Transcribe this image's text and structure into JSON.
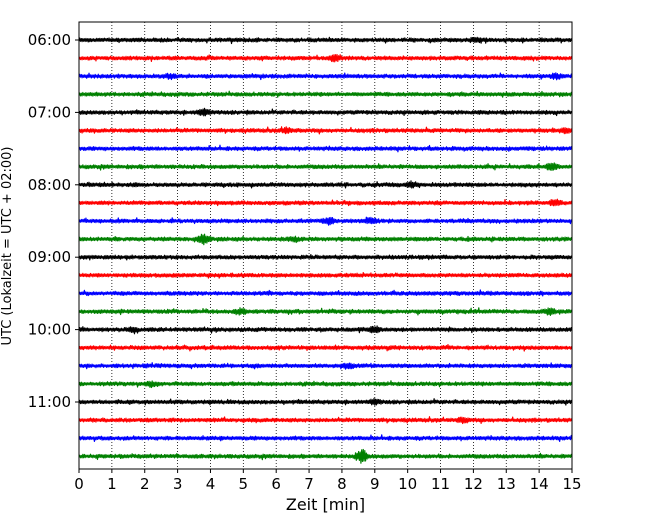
{
  "chart_data": {
    "type": "line",
    "title": "",
    "xlabel": "Zeit  [min]",
    "ylabel": "UTC (Lokalzeit = UTC + 02:00)",
    "xlim": [
      0,
      15
    ],
    "xticks": [
      0,
      1,
      2,
      3,
      4,
      5,
      6,
      7,
      8,
      9,
      10,
      11,
      12,
      13,
      14,
      15
    ],
    "x_grid": "dotted vertical lines at every minute",
    "y_tick_labels": [
      "06:00",
      "07:00",
      "08:00",
      "09:00",
      "10:00",
      "11:00"
    ],
    "trace_interval_minutes": 15,
    "first_trace": "06:00",
    "trace_count": 24,
    "trace_colors": [
      "#000000",
      "#ff0000",
      "#0000ff",
      "#008000"
    ],
    "events": [
      {
        "trace": 0,
        "t": 12.1,
        "amp": 2.0
      },
      {
        "trace": 1,
        "t": 7.8,
        "amp": 3.0
      },
      {
        "trace": 2,
        "t": 2.8,
        "amp": 2.0
      },
      {
        "trace": 2,
        "t": 14.5,
        "amp": 2.0
      },
      {
        "trace": 4,
        "t": 3.8,
        "amp": 2.8
      },
      {
        "trace": 5,
        "t": 6.3,
        "amp": 2.0
      },
      {
        "trace": 5,
        "t": 14.8,
        "amp": 2.0
      },
      {
        "trace": 7,
        "t": 14.4,
        "amp": 3.0
      },
      {
        "trace": 8,
        "t": 10.1,
        "amp": 2.0
      },
      {
        "trace": 9,
        "t": 14.5,
        "amp": 2.5
      },
      {
        "trace": 10,
        "t": 7.6,
        "amp": 3.0
      },
      {
        "trace": 10,
        "t": 8.9,
        "amp": 2.5
      },
      {
        "trace": 11,
        "t": 3.8,
        "amp": 4.5
      },
      {
        "trace": 11,
        "t": 6.5,
        "amp": 1.8
      },
      {
        "trace": 15,
        "t": 4.9,
        "amp": 2.5
      },
      {
        "trace": 15,
        "t": 14.3,
        "amp": 2.5
      },
      {
        "trace": 16,
        "t": 1.6,
        "amp": 2.0
      },
      {
        "trace": 16,
        "t": 9.0,
        "amp": 2.5
      },
      {
        "trace": 18,
        "t": 8.2,
        "amp": 2.0
      },
      {
        "trace": 19,
        "t": 2.2,
        "amp": 2.0
      },
      {
        "trace": 20,
        "t": 9.0,
        "amp": 2.0
      },
      {
        "trace": 21,
        "t": 11.7,
        "amp": 2.0
      },
      {
        "trace": 23,
        "t": 8.6,
        "amp": 6.0
      }
    ]
  }
}
